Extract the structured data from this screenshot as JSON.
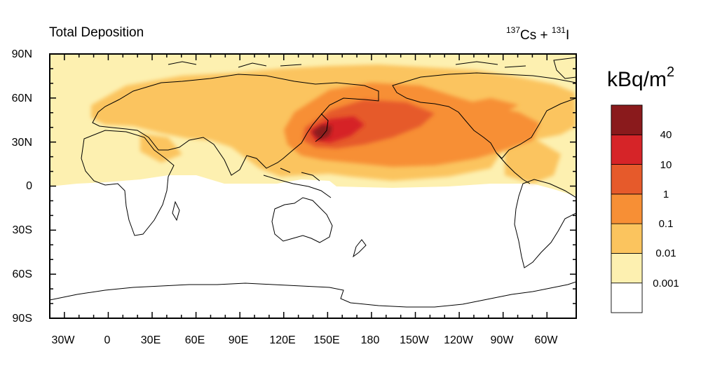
{
  "title": {
    "left": "Total Deposition",
    "right_prefix1": "137",
    "right_text1": "Cs + ",
    "right_prefix2": "131",
    "right_text2": "I"
  },
  "axes": {
    "lat_labels": [
      "90N",
      "60N",
      "30N",
      "0",
      "30S",
      "60S",
      "90S"
    ],
    "lon_labels": [
      "30W",
      "0",
      "30E",
      "60E",
      "90E",
      "120E",
      "150E",
      "180",
      "150W",
      "120W",
      "90W",
      "60W"
    ],
    "lat_range": [
      -90,
      90
    ],
    "lon_range": [
      -40,
      320
    ]
  },
  "colorbar": {
    "unit_base": "kBq/m",
    "unit_exp": "2",
    "levels": [
      "0.001",
      "0.01",
      "0.1",
      "1",
      "10",
      "40"
    ],
    "colors": [
      "#ffffff",
      "#fdf0b0",
      "#fbc45e",
      "#f78f35",
      "#e65a2b",
      "#d62428",
      "#8a1a1c"
    ]
  },
  "colors": {
    "land_outline": "#000000",
    "background": "#ffffff"
  }
}
